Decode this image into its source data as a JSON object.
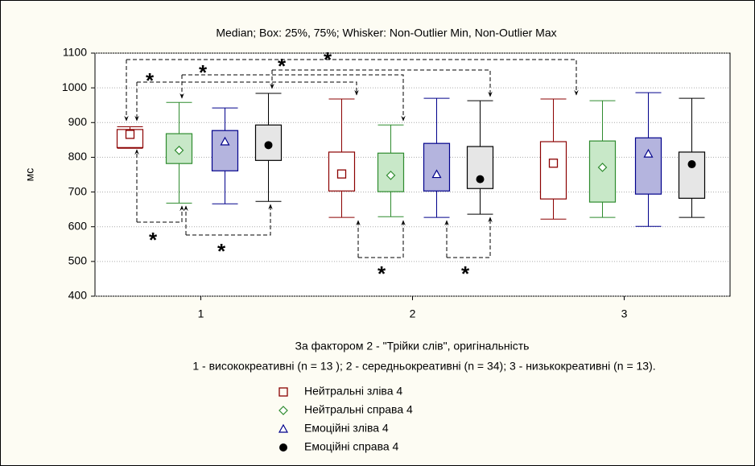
{
  "chart_data": {
    "type": "box",
    "title": "Median;  Box: 25%, 75%;  Whisker: Non-Outlier Min, Non-Outlier Max",
    "ylabel": "мс",
    "xlabel": "За фактором 2 - \"Трійки слів\", оригінальність",
    "subtitle": "1 - висококреативні  (n = 13 ); 2 - середньокреативні  (n = 34); 3 - низькокреативні  (n = 13).",
    "categories": [
      "1",
      "2",
      "3"
    ],
    "ylim": [
      400,
      1100
    ],
    "yticks": [
      400,
      500,
      600,
      700,
      800,
      900,
      1000,
      1100
    ],
    "grid": true,
    "annotations": [
      "*",
      "*",
      "*",
      "*",
      "*",
      "*",
      "*",
      "*"
    ],
    "series": [
      {
        "name": "Нейтральні зліва 4",
        "color": "#8b0000",
        "fill": "#ffffff",
        "marker": "square",
        "min": [
          826,
          627,
          622
        ],
        "q1": [
          828,
          703,
          680
        ],
        "median": [
          866,
          752,
          783
        ],
        "q3": [
          880,
          815,
          845
        ],
        "max": [
          888,
          968,
          968
        ]
      },
      {
        "name": "Нейтральні справа 4",
        "color": "#2e8b2e",
        "fill": "#c8e8c8",
        "marker": "diamond",
        "min": [
          668,
          629,
          627
        ],
        "q1": [
          782,
          701,
          671
        ],
        "median": [
          820,
          748,
          771
        ],
        "q3": [
          868,
          812,
          847
        ],
        "max": [
          958,
          893,
          963
        ]
      },
      {
        "name": "Емоційні зліва 4",
        "color": "#00008b",
        "fill": "#b4b4de",
        "marker": "triangle",
        "min": [
          666,
          627,
          601
        ],
        "q1": [
          761,
          703,
          694
        ],
        "median": [
          845,
          751,
          810
        ],
        "q3": [
          877,
          840,
          856
        ],
        "max": [
          942,
          970,
          986
        ]
      },
      {
        "name": "Емоційні справа 4",
        "color": "#000000",
        "fill": "#e6e6e6",
        "marker": "circle",
        "min": [
          673,
          636,
          627
        ],
        "q1": [
          791,
          710,
          682
        ],
        "median": [
          835,
          737,
          780
        ],
        "q3": [
          893,
          831,
          815
        ],
        "max": [
          984,
          963,
          970
        ]
      }
    ]
  }
}
